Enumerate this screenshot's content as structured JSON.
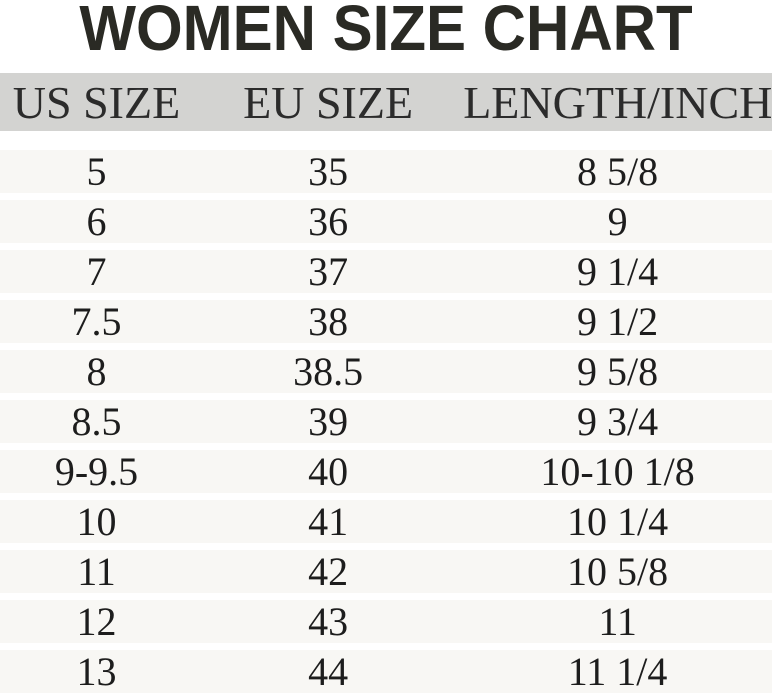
{
  "title": "WOMEN SIZE CHART",
  "chart_data": {
    "type": "table",
    "title": "WOMEN SIZE CHART",
    "columns": [
      "US SIZE",
      "EU SIZE",
      "LENGTH/INCH"
    ],
    "rows": [
      [
        "5",
        "35",
        "8 5/8"
      ],
      [
        "6",
        "36",
        "9"
      ],
      [
        "7",
        "37",
        "9 1/4"
      ],
      [
        "7.5",
        "38",
        "9 1/2"
      ],
      [
        "8",
        "38.5",
        "9 5/8"
      ],
      [
        "8.5",
        "39",
        "9 3/4"
      ],
      [
        "9-9.5",
        "40",
        "10-10 1/8"
      ],
      [
        "10",
        "41",
        "10 1/4"
      ],
      [
        "11",
        "42",
        "10 5/8"
      ],
      [
        "12",
        "43",
        "11"
      ],
      [
        "13",
        "44",
        "11 1/4"
      ]
    ],
    "layout": {
      "legend": "none",
      "grid": "horizontal-band-stripes"
    }
  },
  "colors": {
    "background": "#ffffff",
    "title_text": "#2a2a24",
    "header_bg": "#d3d3d1",
    "header_text": "#2b2b2b",
    "row_bg": "#f8f7f4",
    "row_text": "#1d1d1d"
  }
}
